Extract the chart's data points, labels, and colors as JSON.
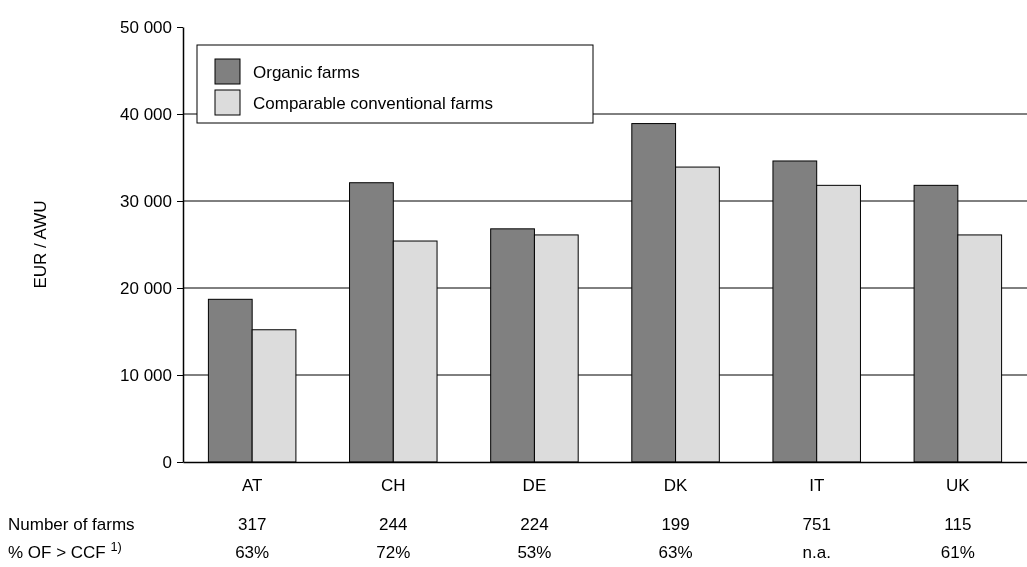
{
  "chart_data": {
    "type": "bar",
    "ylabel": "EUR / AWU",
    "categories": [
      "AT",
      "CH",
      "DE",
      "DK",
      "IT",
      "UK"
    ],
    "series": [
      {
        "name": "Organic farms",
        "color": "#808080",
        "values": [
          18700,
          32100,
          26800,
          38900,
          34600,
          31800
        ]
      },
      {
        "name": "Comparable conventional farms",
        "color": "#dcdcdc",
        "values": [
          15200,
          25400,
          26100,
          33900,
          31800,
          26100
        ]
      }
    ],
    "ylim": [
      0,
      50000
    ],
    "yticks": [
      0,
      {
        "value": 10000,
        "label": "10 000"
      },
      {
        "value": 20000,
        "label": "20 000"
      },
      {
        "value": 30000,
        "label": "30 000"
      },
      {
        "value": 40000,
        "label": "40 000"
      },
      {
        "value": 50000,
        "label": "50 000"
      }
    ],
    "grid": "y",
    "legend": "top left",
    "annotations": [
      "Number of farms",
      "317",
      "244",
      "224",
      "199",
      "751",
      "115",
      "% OF > CCF $^{1)}$",
      "63%",
      "72%",
      "53%",
      "63%",
      "n.a.",
      "61%"
    ]
  }
}
